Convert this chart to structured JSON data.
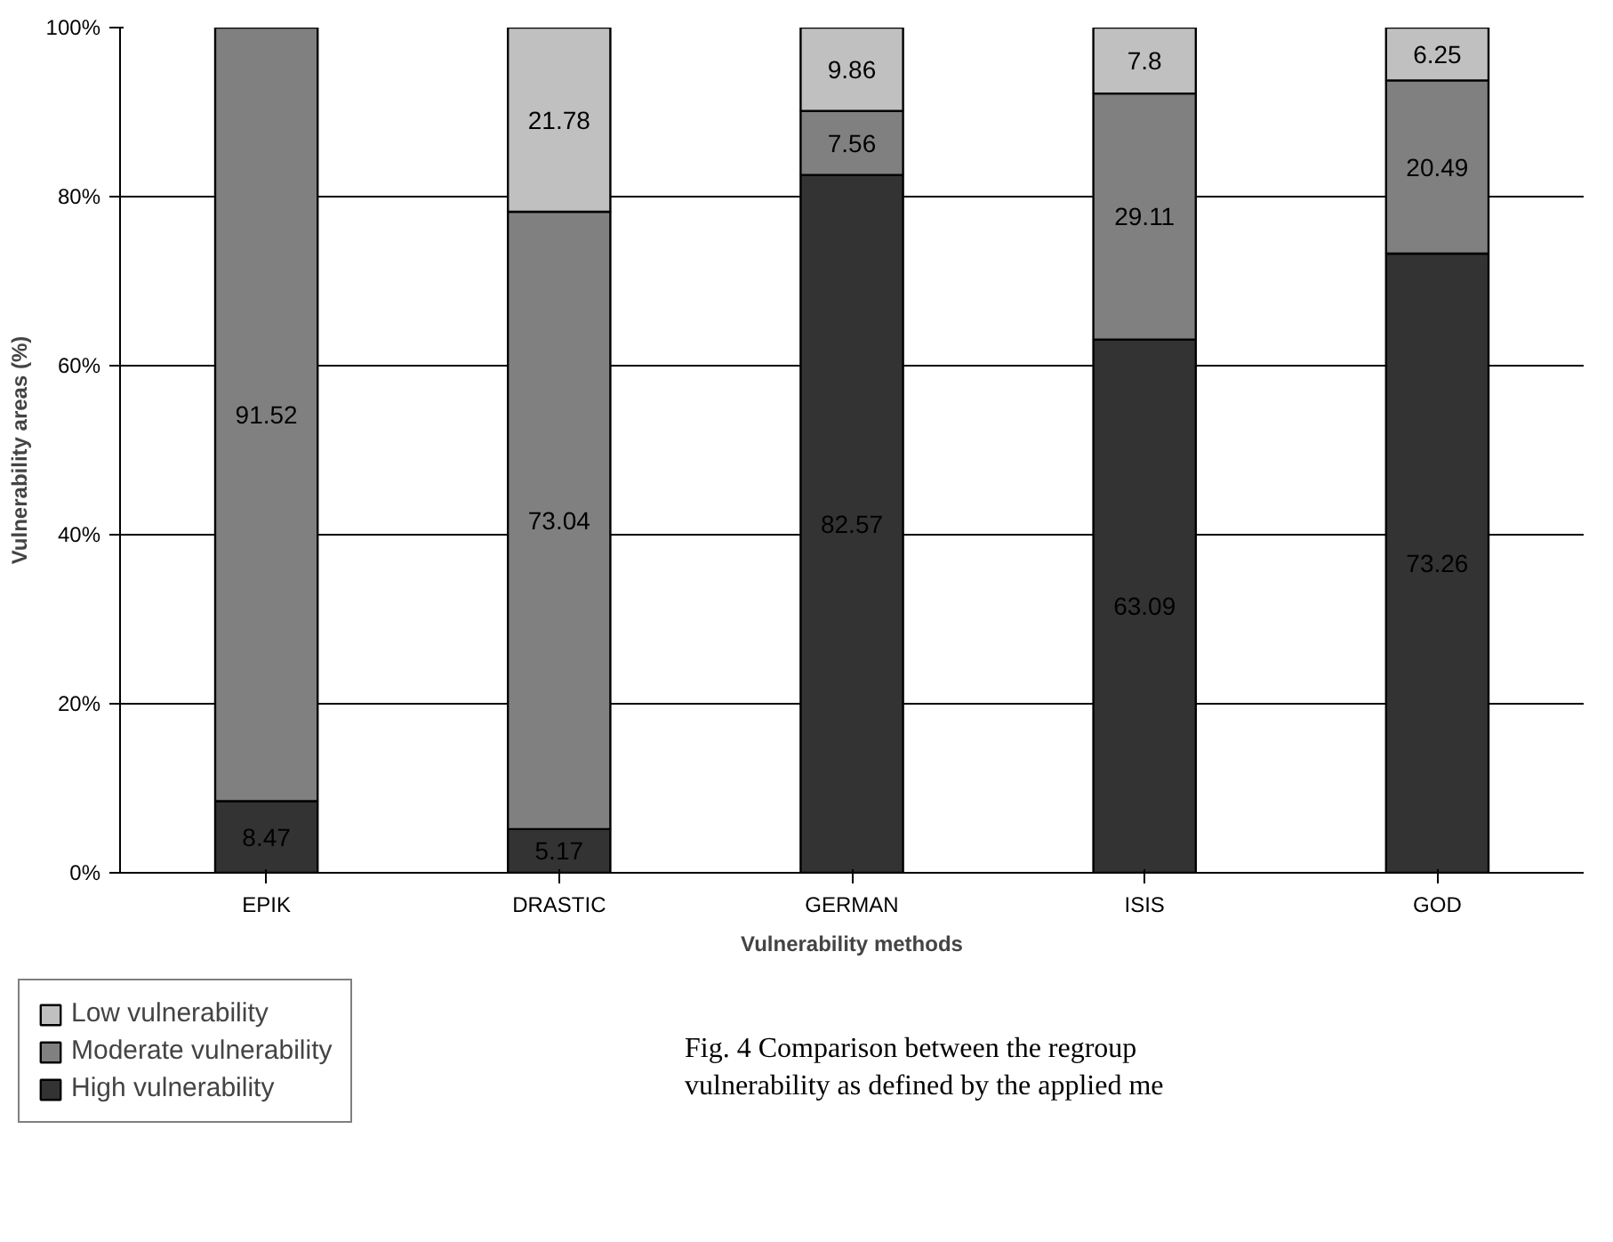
{
  "chart_data": {
    "type": "bar",
    "stacked": true,
    "xlabel": "Vulnerability methods",
    "ylabel": "Vulnerability areas (%)",
    "categories": [
      "EPIK",
      "DRASTIC",
      "GERMAN",
      "ISIS",
      "GOD"
    ],
    "series": [
      {
        "name": "High vulnerability",
        "color": "#333333",
        "values": [
          8.47,
          5.17,
          82.57,
          63.09,
          73.26
        ]
      },
      {
        "name": "Moderate vulnerability",
        "color": "#808080",
        "values": [
          91.52,
          73.04,
          7.56,
          29.11,
          20.49
        ]
      },
      {
        "name": "Low vulnerability",
        "color": "#c0c0c0",
        "values": [
          null,
          21.78,
          9.86,
          7.8,
          6.25
        ]
      }
    ],
    "ylim": [
      0,
      100
    ],
    "yticks": [
      {
        "value": 0,
        "label": "0%"
      },
      {
        "value": 20,
        "label": "20%"
      },
      {
        "value": 40,
        "label": "40%"
      },
      {
        "value": 60,
        "label": "60%"
      },
      {
        "value": 80,
        "label": "80%"
      },
      {
        "value": 100,
        "label": "100%"
      }
    ],
    "grid": "y",
    "legend": "bottom left",
    "data_labels": true,
    "annotations": [
      "Fig. 4 Comparison between the regroup\nvulnerability as defined by the applied me"
    ]
  }
}
